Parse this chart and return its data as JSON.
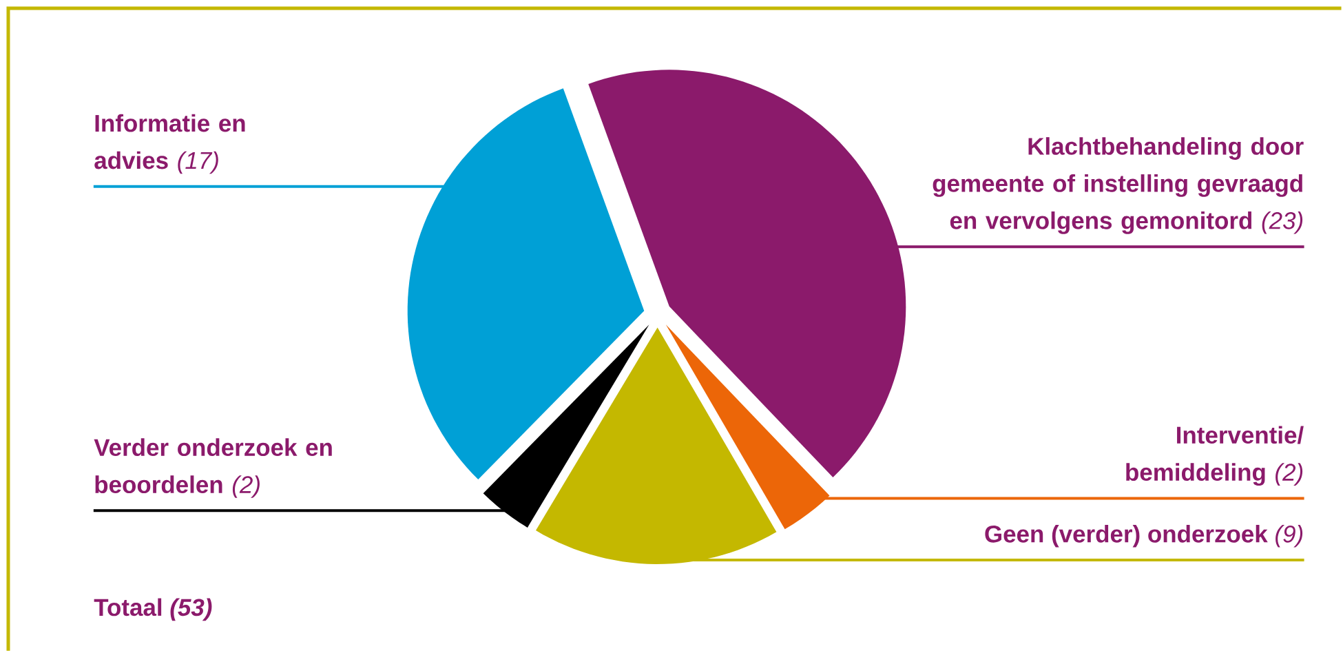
{
  "chart_data": {
    "type": "pie",
    "categories": [
      "Klachtbehandeling door gemeente of instelling gevraagd en vervolgens gemonitord",
      "Interventie/ bemiddeling",
      "Geen (verder) onderzoek",
      "Verder onderzoek en beoordelen",
      "Informatie en advies"
    ],
    "values": [
      23,
      2,
      9,
      2,
      17
    ],
    "value_labels": [
      "(23)",
      "(2)",
      "(9)",
      "(2)",
      "(17)"
    ],
    "colors": [
      "#8b1a6b",
      "#ec6608",
      "#c4b800",
      "#000000",
      "#00a0d6"
    ],
    "annotations": [
      "Totaal *(53)*"
    ]
  }
}
